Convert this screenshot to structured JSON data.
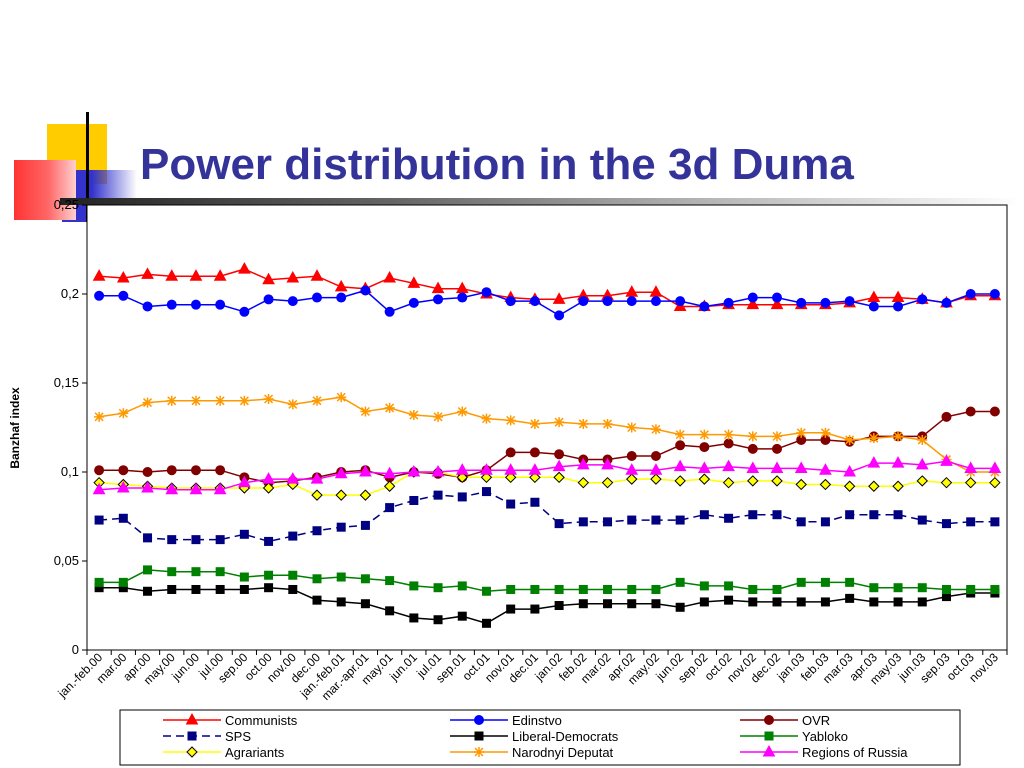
{
  "title": "Power distribution in the 3d Duma",
  "colors": {
    "title": "#333399",
    "deco_yellow": "#FFCC00",
    "deco_blue": "#3333CC",
    "deco_red": "#FF3333"
  },
  "chart_data": {
    "type": "line",
    "ylabel": "Banzhaf index",
    "xlabel": "",
    "ylim": [
      0,
      0.25
    ],
    "yticks": [
      "0",
      "0,05",
      "0,1",
      "0,15",
      "0,2",
      "0,25"
    ],
    "grid": false,
    "legend_position": "bottom",
    "categories": [
      "jan.-feb.00",
      "mar.00",
      "apr.00",
      "may.00",
      "jun.00",
      "jul.00",
      "sep.00",
      "oct.00",
      "nov.00",
      "dec.00",
      "jan.-feb.01",
      "mar.-apr.01",
      "may.01",
      "jun.01",
      "jul.01",
      "sep.01",
      "oct.01",
      "nov.01",
      "dec.01",
      "jan.02",
      "feb.02",
      "mar.02",
      "apr.02",
      "may.02",
      "jun.02",
      "sep.02",
      "oct.02",
      "nov.02",
      "dec.02",
      "jan.03",
      "feb.03",
      "mar.03",
      "apr.03",
      "may.03",
      "jun.03",
      "sep.03",
      "oct.03",
      "nov.03"
    ],
    "xtick_labels": [
      "jan.-feb.00",
      "mar.00",
      "apr.00",
      "may.00",
      "jun.00",
      "jul.00",
      "sep.00",
      "oct.00",
      "nov.00",
      "dec.00",
      "jan.-feb.01",
      "mar.-apr.01",
      "may.01",
      "jun.01",
      "jul.01",
      "sep.01",
      "oct.01",
      "nov.01",
      "dec.01",
      "jan.02",
      "feb.02",
      "mar.02",
      "apr.02",
      "may.02",
      "jun.02",
      "sep.02",
      "oct.02",
      "nov.02",
      "dec.02",
      "jan.03",
      "feb.03",
      "mar.03",
      "apr.03",
      "may.03",
      "jun.03",
      "sep.03",
      "oct.03",
      "nov.03"
    ],
    "series": [
      {
        "name": "Communists",
        "color": "#FF0000",
        "marker": "triangle",
        "dash": false,
        "values": [
          0.21,
          0.209,
          0.211,
          0.21,
          0.21,
          0.21,
          0.214,
          0.208,
          0.209,
          0.21,
          0.204,
          0.203,
          0.209,
          0.206,
          0.203,
          0.203,
          0.2,
          0.198,
          0.197,
          0.197,
          0.199,
          0.199,
          0.201,
          0.201,
          0.193,
          0.193,
          0.194,
          0.194,
          0.194,
          0.194,
          0.194,
          0.195,
          0.198,
          0.198,
          0.197,
          0.195,
          0.199,
          0.199
        ]
      },
      {
        "name": "Edinstvo",
        "color": "#0000FF",
        "marker": "circle",
        "dash": false,
        "values": [
          0.199,
          0.199,
          0.193,
          0.194,
          0.194,
          0.194,
          0.19,
          0.197,
          0.196,
          0.198,
          0.198,
          0.202,
          0.19,
          0.195,
          0.197,
          0.198,
          0.201,
          0.196,
          0.196,
          0.188,
          0.196,
          0.196,
          0.196,
          0.196,
          0.196,
          0.193,
          0.195,
          0.198,
          0.198,
          0.195,
          0.195,
          0.196,
          0.193,
          0.193,
          0.197,
          0.195,
          0.2,
          0.2
        ]
      },
      {
        "name": "OVR",
        "color": "#800000",
        "marker": "circle",
        "dash": false,
        "values": [
          0.101,
          0.101,
          0.1,
          0.101,
          0.101,
          0.101,
          0.097,
          0.094,
          0.095,
          0.097,
          0.1,
          0.101,
          0.097,
          0.1,
          0.099,
          0.097,
          0.101,
          0.111,
          0.111,
          0.11,
          0.107,
          0.107,
          0.109,
          0.109,
          0.115,
          0.114,
          0.116,
          0.113,
          0.113,
          0.118,
          0.118,
          0.117,
          0.12,
          0.12,
          0.12,
          0.131,
          0.134,
          0.134
        ]
      },
      {
        "name": "SPS",
        "color": "#000080",
        "marker": "square",
        "dash": true,
        "values": [
          0.073,
          0.074,
          0.063,
          0.062,
          0.062,
          0.062,
          0.065,
          0.061,
          0.064,
          0.067,
          0.069,
          0.07,
          0.08,
          0.084,
          0.087,
          0.086,
          0.089,
          0.082,
          0.083,
          0.071,
          0.072,
          0.072,
          0.073,
          0.073,
          0.073,
          0.076,
          0.074,
          0.076,
          0.076,
          0.072,
          0.072,
          0.076,
          0.076,
          0.076,
          0.073,
          0.071,
          0.072,
          0.072
        ]
      },
      {
        "name": "Liberal-Democrats",
        "color": "#000000",
        "marker": "square",
        "dash": false,
        "values": [
          0.035,
          0.035,
          0.033,
          0.034,
          0.034,
          0.034,
          0.034,
          0.035,
          0.034,
          0.028,
          0.027,
          0.026,
          0.022,
          0.018,
          0.017,
          0.019,
          0.015,
          0.023,
          0.023,
          0.025,
          0.026,
          0.026,
          0.026,
          0.026,
          0.024,
          0.027,
          0.028,
          0.027,
          0.027,
          0.027,
          0.027,
          0.029,
          0.027,
          0.027,
          0.027,
          0.03,
          0.032,
          0.032
        ]
      },
      {
        "name": "Yabloko",
        "color": "#008000",
        "marker": "square",
        "dash": false,
        "values": [
          0.038,
          0.038,
          0.045,
          0.044,
          0.044,
          0.044,
          0.041,
          0.042,
          0.042,
          0.04,
          0.041,
          0.04,
          0.039,
          0.036,
          0.035,
          0.036,
          0.033,
          0.034,
          0.034,
          0.034,
          0.034,
          0.034,
          0.034,
          0.034,
          0.038,
          0.036,
          0.036,
          0.034,
          0.034,
          0.038,
          0.038,
          0.038,
          0.035,
          0.035,
          0.035,
          0.034,
          0.034,
          0.034
        ]
      },
      {
        "name": "Agrariants",
        "color": "#FFFF00",
        "marker": "diamond",
        "dash": false,
        "values": [
          0.094,
          0.093,
          0.092,
          0.091,
          0.091,
          0.091,
          0.091,
          0.091,
          0.093,
          0.087,
          0.087,
          0.087,
          0.092,
          0.1,
          0.1,
          0.097,
          0.097,
          0.097,
          0.097,
          0.097,
          0.094,
          0.094,
          0.096,
          0.096,
          0.095,
          0.096,
          0.094,
          0.095,
          0.095,
          0.093,
          0.093,
          0.092,
          0.092,
          0.092,
          0.095,
          0.094,
          0.094,
          0.094
        ]
      },
      {
        "name": "Narodnyi Deputat",
        "color": "#FF9900",
        "marker": "star",
        "dash": false,
        "values": [
          0.131,
          0.133,
          0.139,
          0.14,
          0.14,
          0.14,
          0.14,
          0.141,
          0.138,
          0.14,
          0.142,
          0.134,
          0.136,
          0.132,
          0.131,
          0.134,
          0.13,
          0.129,
          0.127,
          0.128,
          0.127,
          0.127,
          0.125,
          0.124,
          0.121,
          0.121,
          0.121,
          0.12,
          0.12,
          0.122,
          0.122,
          0.118,
          0.119,
          0.12,
          0.118,
          0.107,
          0.1,
          0.1
        ]
      },
      {
        "name": "Regions of Russia",
        "color": "#FF00FF",
        "marker": "triangle",
        "dash": false,
        "values": [
          0.09,
          0.091,
          0.091,
          0.09,
          0.09,
          0.09,
          0.094,
          0.096,
          0.096,
          0.096,
          0.099,
          0.1,
          0.099,
          0.1,
          0.1,
          0.101,
          0.101,
          0.101,
          0.101,
          0.103,
          0.104,
          0.104,
          0.101,
          0.101,
          0.103,
          0.102,
          0.103,
          0.102,
          0.102,
          0.102,
          0.101,
          0.1,
          0.105,
          0.105,
          0.104,
          0.106,
          0.102,
          0.102
        ]
      }
    ]
  }
}
